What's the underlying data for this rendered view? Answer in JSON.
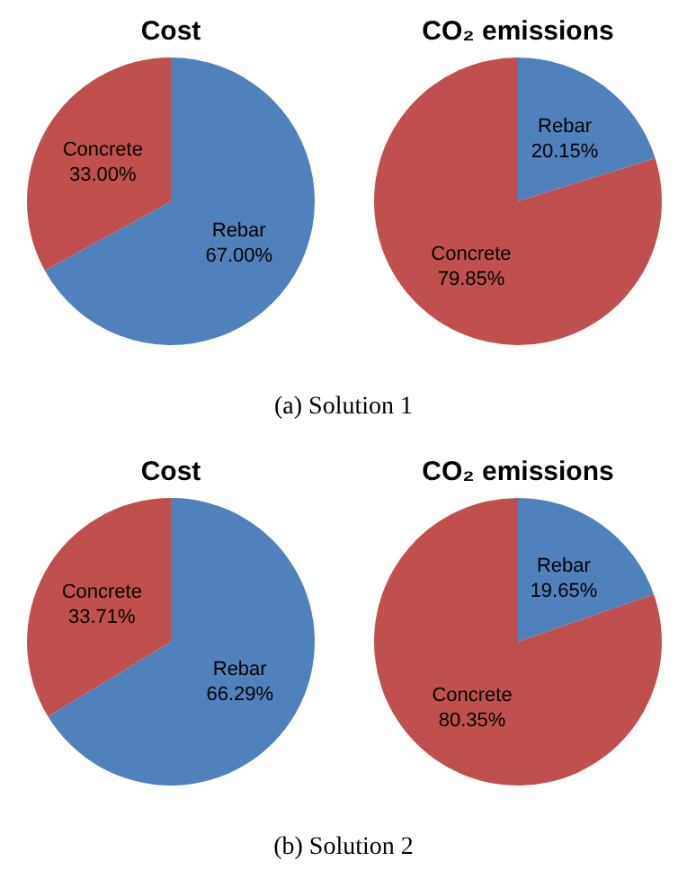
{
  "chart_data": [
    {
      "type": "pie",
      "title": "Cost",
      "categories": [
        "Rebar",
        "Concrete"
      ],
      "values": [
        67.0,
        33.0
      ],
      "value_labels": [
        "67.00%",
        "33.00%"
      ],
      "colors": [
        "#4f81bd",
        "#c0504d"
      ],
      "annotations": [
        "(a) Solution 1"
      ]
    },
    {
      "type": "pie",
      "title": "CO₂ emissions",
      "categories": [
        "Rebar",
        "Concrete"
      ],
      "values": [
        20.15,
        79.85
      ],
      "value_labels": [
        "20.15%",
        "79.85%"
      ],
      "colors": [
        "#4f81bd",
        "#c0504d"
      ]
    },
    {
      "type": "pie",
      "title": "Cost",
      "categories": [
        "Rebar",
        "Concrete"
      ],
      "values": [
        66.29,
        33.71
      ],
      "value_labels": [
        "66.29%",
        "33.71%"
      ],
      "colors": [
        "#4f81bd",
        "#c0504d"
      ],
      "annotations": [
        "(b) Solution 2"
      ]
    },
    {
      "type": "pie",
      "title": "CO₂ emissions",
      "categories": [
        "Rebar",
        "Concrete"
      ],
      "values": [
        19.65,
        80.35
      ],
      "value_labels": [
        "19.65%",
        "80.35%"
      ],
      "colors": [
        "#4f81bd",
        "#c0504d"
      ]
    }
  ]
}
